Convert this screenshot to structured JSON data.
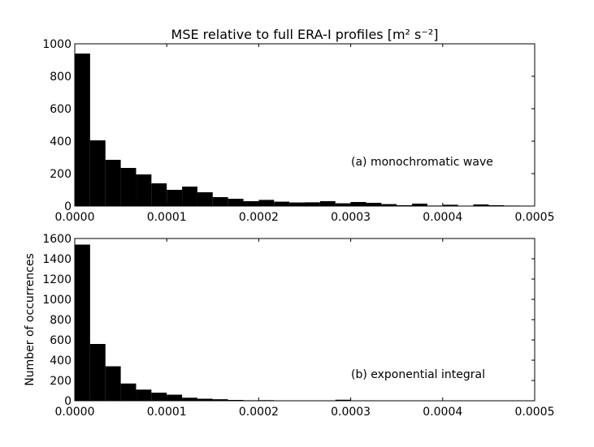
{
  "chart_data": [
    {
      "type": "bar",
      "title": "MSE relative to full ERA-I profiles [m² s⁻²]",
      "annotation": "(a) monochromatic wave",
      "xlabel": "",
      "ylabel": "",
      "xlim": [
        0,
        0.0005
      ],
      "ylim": [
        0,
        1000
      ],
      "x_ticks": [
        0,
        0.0001,
        0.0002,
        0.0003,
        0.0004,
        0.0005
      ],
      "x_tick_labels": [
        "0.0000",
        "0.0001",
        "0.0002",
        "0.0003",
        "0.0004",
        "0.0005"
      ],
      "y_ticks": [
        0,
        200,
        400,
        600,
        800,
        1000
      ],
      "y_tick_labels": [
        "0",
        "200",
        "400",
        "600",
        "800",
        "1000"
      ],
      "bin_width": 1.667e-05,
      "values": [
        940,
        405,
        285,
        235,
        195,
        140,
        100,
        120,
        85,
        55,
        45,
        30,
        38,
        27,
        22,
        23,
        30,
        17,
        25,
        20,
        12,
        5,
        15,
        3,
        8,
        2,
        10,
        5,
        3,
        2
      ]
    },
    {
      "type": "bar",
      "title": "",
      "annotation": "(b) exponential integral",
      "xlabel": "",
      "ylabel": "Number of occurrences",
      "xlim": [
        0,
        0.0005
      ],
      "ylim": [
        0,
        1600
      ],
      "x_ticks": [
        0,
        0.0001,
        0.0002,
        0.0003,
        0.0004,
        0.0005
      ],
      "x_tick_labels": [
        "0.0000",
        "0.0001",
        "0.0002",
        "0.0003",
        "0.0004",
        "0.0005"
      ],
      "y_ticks": [
        0,
        200,
        400,
        600,
        800,
        1000,
        1200,
        1400,
        1600
      ],
      "y_tick_labels": [
        "0",
        "200",
        "400",
        "600",
        "800",
        "1000",
        "1200",
        "1400",
        "1600"
      ],
      "bin_width": 1.667e-05,
      "values": [
        1540,
        560,
        340,
        170,
        110,
        80,
        60,
        30,
        20,
        15,
        8,
        5,
        6,
        3,
        2,
        2,
        1,
        10,
        2,
        1,
        0,
        0,
        0,
        0,
        0,
        0,
        0,
        0,
        0,
        0
      ]
    }
  ]
}
